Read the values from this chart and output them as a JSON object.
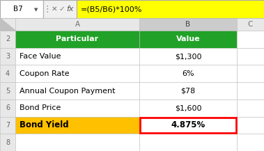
{
  "formula_bar_cell": "B7",
  "formula_bar_formula": "=(B5/B6)*100%",
  "col_headers": [
    "A",
    "B",
    "C"
  ],
  "row_numbers": [
    "2",
    "3",
    "4",
    "5",
    "6",
    "7",
    "8"
  ],
  "header_row": [
    "Particular",
    "Value"
  ],
  "rows": [
    [
      "Face Value",
      "$1,300"
    ],
    [
      "Coupon Rate",
      "6%"
    ],
    [
      "Annual Coupon Payment",
      "$78"
    ],
    [
      "Bond Price",
      "$1,600"
    ],
    [
      "Bond Yield",
      "4.875%"
    ]
  ],
  "header_bg": "#21A128",
  "header_text": "#FFFFFF",
  "last_row_bg_a": "#FFC000",
  "last_row_text_a": "#000000",
  "last_row_bg_b": "#FFFFFF",
  "last_row_border_b": "#FF0000",
  "formula_bar_bg": "#FFFF00",
  "formula_bar_text": "#000000",
  "cell_bg": "#FFFFFF",
  "grid_color": "#BFBFBF",
  "header_col_bg": "#E0E0E0",
  "top_bar_bg": "#F0F0F0",
  "row_num_color": "#666666",
  "col_header_text": "#707070",
  "sheet_bg": "#F2F2F2"
}
